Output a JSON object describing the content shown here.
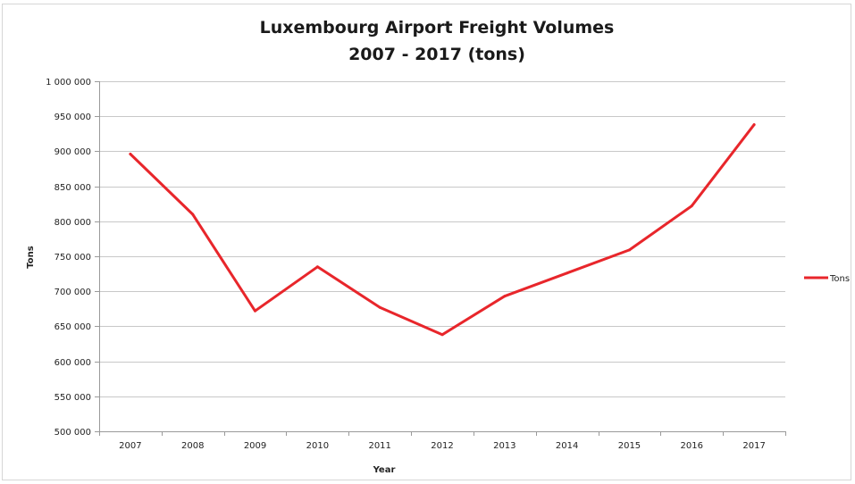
{
  "chart_data": {
    "type": "line",
    "title": "Luxembourg Airport Freight Volumes",
    "subtitle": "2007 - 2017 (tons)",
    "xlabel": "Year",
    "ylabel": "Tons",
    "categories": [
      "2007",
      "2008",
      "2009",
      "2010",
      "2011",
      "2012",
      "2013",
      "2014",
      "2015",
      "2016",
      "2017"
    ],
    "series": [
      {
        "name": "Tons",
        "color": "#e8262b",
        "values": [
          896000,
          810000,
          672000,
          735000,
          677000,
          638000,
          693000,
          726000,
          759000,
          822000,
          938000
        ]
      }
    ],
    "ylim": [
      500000,
      1000000
    ],
    "yticks": [
      500000,
      550000,
      600000,
      650000,
      700000,
      750000,
      800000,
      850000,
      900000,
      950000,
      1000000
    ],
    "ytick_labels": [
      "500 000",
      "550 000",
      "600 000",
      "650 000",
      "700 000",
      "750 000",
      "800 000",
      "850 000",
      "900 000",
      "950 000",
      "1 000 000"
    ],
    "grid": true,
    "legend_position": "right"
  }
}
